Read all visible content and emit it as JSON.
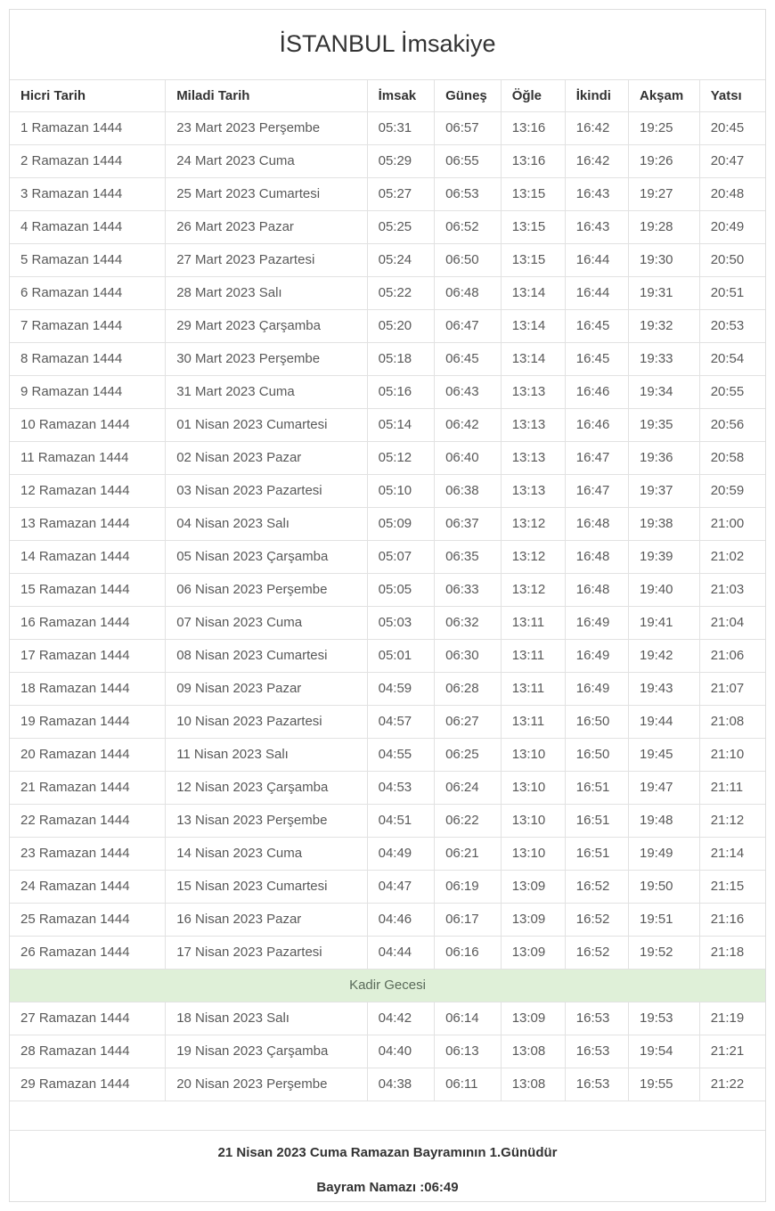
{
  "page": {
    "title": "İSTANBUL İmsakiye"
  },
  "table": {
    "columns": [
      "Hicri Tarih",
      "Miladi Tarih",
      "İmsak",
      "Güneş",
      "Öğle",
      "İkindi",
      "Akşam",
      "Yatsı"
    ],
    "rows": [
      {
        "hicri": "1 Ramazan 1444",
        "miladi": "23 Mart 2023 Perşembe",
        "times": [
          "05:31",
          "06:57",
          "13:16",
          "16:42",
          "19:25",
          "20:45"
        ]
      },
      {
        "hicri": "2 Ramazan 1444",
        "miladi": "24 Mart 2023 Cuma",
        "times": [
          "05:29",
          "06:55",
          "13:16",
          "16:42",
          "19:26",
          "20:47"
        ]
      },
      {
        "hicri": "3 Ramazan 1444",
        "miladi": "25 Mart 2023 Cumartesi",
        "times": [
          "05:27",
          "06:53",
          "13:15",
          "16:43",
          "19:27",
          "20:48"
        ]
      },
      {
        "hicri": "4 Ramazan 1444",
        "miladi": "26 Mart 2023 Pazar",
        "times": [
          "05:25",
          "06:52",
          "13:15",
          "16:43",
          "19:28",
          "20:49"
        ]
      },
      {
        "hicri": "5 Ramazan 1444",
        "miladi": "27 Mart 2023 Pazartesi",
        "times": [
          "05:24",
          "06:50",
          "13:15",
          "16:44",
          "19:30",
          "20:50"
        ]
      },
      {
        "hicri": "6 Ramazan 1444",
        "miladi": "28 Mart 2023 Salı",
        "times": [
          "05:22",
          "06:48",
          "13:14",
          "16:44",
          "19:31",
          "20:51"
        ]
      },
      {
        "hicri": "7 Ramazan 1444",
        "miladi": "29 Mart 2023 Çarşamba",
        "times": [
          "05:20",
          "06:47",
          "13:14",
          "16:45",
          "19:32",
          "20:53"
        ]
      },
      {
        "hicri": "8 Ramazan 1444",
        "miladi": "30 Mart 2023 Perşembe",
        "times": [
          "05:18",
          "06:45",
          "13:14",
          "16:45",
          "19:33",
          "20:54"
        ]
      },
      {
        "hicri": "9 Ramazan 1444",
        "miladi": "31 Mart 2023 Cuma",
        "times": [
          "05:16",
          "06:43",
          "13:13",
          "16:46",
          "19:34",
          "20:55"
        ]
      },
      {
        "hicri": "10 Ramazan 1444",
        "miladi": "01 Nisan 2023 Cumartesi",
        "times": [
          "05:14",
          "06:42",
          "13:13",
          "16:46",
          "19:35",
          "20:56"
        ]
      },
      {
        "hicri": "11 Ramazan 1444",
        "miladi": "02 Nisan 2023 Pazar",
        "times": [
          "05:12",
          "06:40",
          "13:13",
          "16:47",
          "19:36",
          "20:58"
        ]
      },
      {
        "hicri": "12 Ramazan 1444",
        "miladi": "03 Nisan 2023 Pazartesi",
        "times": [
          "05:10",
          "06:38",
          "13:13",
          "16:47",
          "19:37",
          "20:59"
        ]
      },
      {
        "hicri": "13 Ramazan 1444",
        "miladi": "04 Nisan 2023 Salı",
        "times": [
          "05:09",
          "06:37",
          "13:12",
          "16:48",
          "19:38",
          "21:00"
        ]
      },
      {
        "hicri": "14 Ramazan 1444",
        "miladi": "05 Nisan 2023 Çarşamba",
        "times": [
          "05:07",
          "06:35",
          "13:12",
          "16:48",
          "19:39",
          "21:02"
        ]
      },
      {
        "hicri": "15 Ramazan 1444",
        "miladi": "06 Nisan 2023 Perşembe",
        "times": [
          "05:05",
          "06:33",
          "13:12",
          "16:48",
          "19:40",
          "21:03"
        ]
      },
      {
        "hicri": "16 Ramazan 1444",
        "miladi": "07 Nisan 2023 Cuma",
        "times": [
          "05:03",
          "06:32",
          "13:11",
          "16:49",
          "19:41",
          "21:04"
        ]
      },
      {
        "hicri": "17 Ramazan 1444",
        "miladi": "08 Nisan 2023 Cumartesi",
        "times": [
          "05:01",
          "06:30",
          "13:11",
          "16:49",
          "19:42",
          "21:06"
        ]
      },
      {
        "hicri": "18 Ramazan 1444",
        "miladi": "09 Nisan 2023 Pazar",
        "times": [
          "04:59",
          "06:28",
          "13:11",
          "16:49",
          "19:43",
          "21:07"
        ]
      },
      {
        "hicri": "19 Ramazan 1444",
        "miladi": "10 Nisan 2023 Pazartesi",
        "times": [
          "04:57",
          "06:27",
          "13:11",
          "16:50",
          "19:44",
          "21:08"
        ]
      },
      {
        "hicri": "20 Ramazan 1444",
        "miladi": "11 Nisan 2023 Salı",
        "times": [
          "04:55",
          "06:25",
          "13:10",
          "16:50",
          "19:45",
          "21:10"
        ]
      },
      {
        "hicri": "21 Ramazan 1444",
        "miladi": "12 Nisan 2023 Çarşamba",
        "times": [
          "04:53",
          "06:24",
          "13:10",
          "16:51",
          "19:47",
          "21:11"
        ]
      },
      {
        "hicri": "22 Ramazan 1444",
        "miladi": "13 Nisan 2023 Perşembe",
        "times": [
          "04:51",
          "06:22",
          "13:10",
          "16:51",
          "19:48",
          "21:12"
        ]
      },
      {
        "hicri": "23 Ramazan 1444",
        "miladi": "14 Nisan 2023 Cuma",
        "times": [
          "04:49",
          "06:21",
          "13:10",
          "16:51",
          "19:49",
          "21:14"
        ]
      },
      {
        "hicri": "24 Ramazan 1444",
        "miladi": "15 Nisan 2023 Cumartesi",
        "times": [
          "04:47",
          "06:19",
          "13:09",
          "16:52",
          "19:50",
          "21:15"
        ]
      },
      {
        "hicri": "25 Ramazan 1444",
        "miladi": "16 Nisan 2023 Pazar",
        "times": [
          "04:46",
          "06:17",
          "13:09",
          "16:52",
          "19:51",
          "21:16"
        ]
      },
      {
        "hicri": "26 Ramazan 1444",
        "miladi": "17 Nisan 2023 Pazartesi",
        "times": [
          "04:44",
          "06:16",
          "13:09",
          "16:52",
          "19:52",
          "21:18"
        ]
      },
      {
        "hicri": "27 Ramazan 1444",
        "miladi": "18 Nisan 2023 Salı",
        "times": [
          "04:42",
          "06:14",
          "13:09",
          "16:53",
          "19:53",
          "21:19"
        ]
      },
      {
        "hicri": "28 Ramazan 1444",
        "miladi": "19 Nisan 2023 Çarşamba",
        "times": [
          "04:40",
          "06:13",
          "13:08",
          "16:53",
          "19:54",
          "21:21"
        ]
      },
      {
        "hicri": "29 Ramazan 1444",
        "miladi": "20 Nisan 2023 Perşembe",
        "times": [
          "04:38",
          "06:11",
          "13:08",
          "16:53",
          "19:55",
          "21:22"
        ]
      }
    ],
    "special_row": {
      "label": "Kadir Gecesi",
      "insert_before_index": 26
    }
  },
  "footer": {
    "bayram_note": "21 Nisan 2023 Cuma Ramazan Bayramının 1.Günüdür",
    "bayram_namazi": "Bayram Namazı :06:49"
  },
  "colors": {
    "kadir_row_bg": "#dff0d8",
    "kadir_row_text": "#5a6a5a",
    "table_border": "#e2e2e2",
    "header_text": "#333333",
    "cell_text": "#595959"
  }
}
